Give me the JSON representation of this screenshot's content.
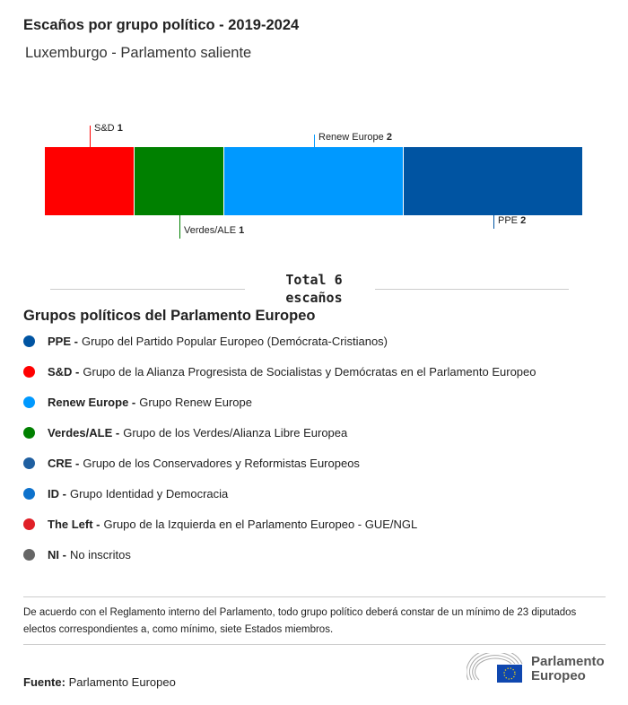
{
  "title": "Escaños por grupo político - 2019-2024",
  "subtitle": "Luxemburgo - Parlamento saliente",
  "chart_data": {
    "type": "bar",
    "orientation": "stacked-horizontal",
    "categories": [
      "S&D",
      "Verdes/ALE",
      "Renew Europe",
      "PPE"
    ],
    "values": [
      1,
      1,
      2,
      2
    ],
    "colors": [
      "#ff0000",
      "#008000",
      "#0099ff",
      "#0054a2"
    ],
    "total_label": "Total 6 escaños"
  },
  "legend": {
    "title": "Grupos políticos del Parlamento Europeo",
    "items": [
      {
        "abbr": "PPE -",
        "name": "Grupo del Partido Popular Europeo (Demócrata-Cristianos)",
        "color": "#0054a2"
      },
      {
        "abbr": "S&D -",
        "name": "Grupo de la Alianza Progresista de Socialistas y Demócratas en el Parlamento Europeo",
        "color": "#f00"
      },
      {
        "abbr": "Renew Europe -",
        "name": "Grupo Renew Europe",
        "color": "#0099ff"
      },
      {
        "abbr": "Verdes/ALE -",
        "name": "Grupo de los Verdes/Alianza Libre Europea",
        "color": "#008000"
      },
      {
        "abbr": "CRE -",
        "name": "Grupo de los Conservadores y Reformistas Europeos",
        "color": "#1f5fa0"
      },
      {
        "abbr": "ID -",
        "name": "Grupo Identidad y Democracia",
        "color": "#0e72cc"
      },
      {
        "abbr": "The Left -",
        "name": "Grupo de la Izquierda en el Parlamento Europeo - GUE/NGL",
        "color": "#e02027"
      },
      {
        "abbr": "NI -",
        "name": "No inscritos",
        "color": "#666"
      }
    ]
  },
  "note": "De acuerdo con el Reglamento interno del Parlamento, todo grupo político deberá constar de un mínimo de 23 diputados electos correspondientes a, como mínimo, siete Estados miembros.",
  "source": {
    "label": "Fuente:",
    "value": "Parlamento Europeo"
  },
  "logo": {
    "line1": "Parlamento",
    "line2": "Europeo"
  }
}
